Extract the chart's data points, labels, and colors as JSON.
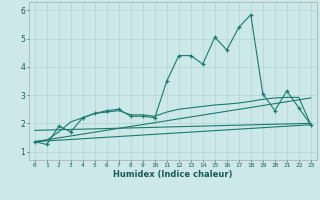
{
  "title": "",
  "xlabel": "Humidex (Indice chaleur)",
  "bg_color": "#cde8e8",
  "grid_color": "#b8d8d8",
  "line_color": "#1a7a6e",
  "xlim": [
    -0.5,
    23.5
  ],
  "ylim": [
    0.7,
    6.3
  ],
  "xticks": [
    0,
    1,
    2,
    3,
    4,
    5,
    6,
    7,
    8,
    9,
    10,
    11,
    12,
    13,
    14,
    15,
    16,
    17,
    18,
    19,
    20,
    21,
    22,
    23
  ],
  "yticks": [
    1,
    2,
    3,
    4,
    5,
    6
  ],
  "series1_x": [
    0,
    1,
    2,
    3,
    4,
    5,
    6,
    7,
    8,
    9,
    10,
    11,
    12,
    13,
    14,
    15,
    16,
    17,
    18,
    19,
    20,
    21,
    22,
    23
  ],
  "series1_y": [
    1.35,
    1.25,
    1.9,
    1.7,
    2.2,
    2.35,
    2.45,
    2.5,
    2.25,
    2.25,
    2.2,
    3.5,
    4.4,
    4.4,
    4.1,
    5.05,
    4.6,
    5.4,
    5.85,
    3.05,
    2.45,
    3.15,
    2.55,
    1.95
  ],
  "series2_x": [
    0,
    1,
    2,
    3,
    4,
    5,
    6,
    7,
    8,
    9,
    10,
    11,
    12,
    13,
    14,
    15,
    16,
    17,
    18,
    19,
    20,
    21,
    22,
    23
  ],
  "series2_y": [
    1.35,
    1.4,
    1.7,
    2.05,
    2.2,
    2.35,
    2.4,
    2.45,
    2.3,
    2.3,
    2.25,
    2.4,
    2.5,
    2.55,
    2.6,
    2.65,
    2.68,
    2.72,
    2.78,
    2.85,
    2.9,
    2.92,
    2.92,
    1.95
  ],
  "series3_x": [
    0,
    23
  ],
  "series3_y": [
    1.35,
    2.9
  ],
  "series4_x": [
    0,
    23
  ],
  "series4_y": [
    1.35,
    1.95
  ],
  "series5_x": [
    0,
    23
  ],
  "series5_y": [
    1.75,
    2.0
  ],
  "figsize": [
    3.2,
    2.0
  ],
  "dpi": 100
}
